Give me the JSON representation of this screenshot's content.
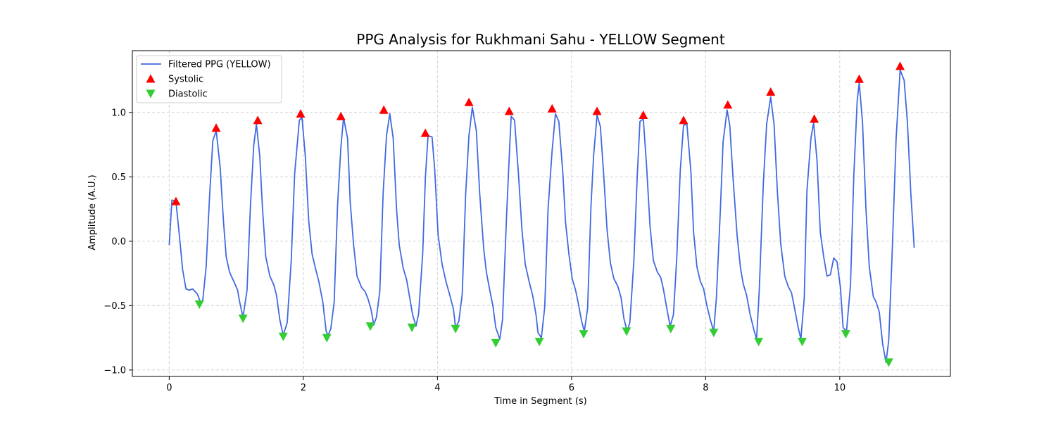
{
  "chart_data": {
    "type": "line",
    "title": "PPG Analysis for Rukhmani Sahu - YELLOW Segment",
    "xlabel": "Time in Segment (s)",
    "ylabel": "Amplitude (A.U.)",
    "xlim": [
      -0.55,
      11.65
    ],
    "ylim": [
      -1.05,
      1.48
    ],
    "x_ticks": [
      0,
      2,
      4,
      6,
      8,
      10
    ],
    "x_tick_labels": [
      "0",
      "2",
      "4",
      "6",
      "8",
      "10"
    ],
    "y_ticks": [
      -1.0,
      -0.5,
      0.0,
      0.5,
      1.0
    ],
    "y_tick_labels": [
      "−1.0",
      "−0.5",
      "0.0",
      "0.5",
      "1.0"
    ],
    "grid": true,
    "legend_position": "upper-left",
    "series": [
      {
        "name": "Filtered PPG (YELLOW)",
        "kind": "line",
        "color": "#4169e1",
        "x": [
          0.0,
          0.04,
          0.1,
          0.16,
          0.2,
          0.25,
          0.3,
          0.35,
          0.42,
          0.47,
          0.5,
          0.55,
          0.6,
          0.65,
          0.7,
          0.76,
          0.81,
          0.85,
          0.9,
          0.97,
          1.02,
          1.05,
          1.1,
          1.16,
          1.21,
          1.26,
          1.3,
          1.35,
          1.39,
          1.44,
          1.5,
          1.56,
          1.6,
          1.65,
          1.7,
          1.76,
          1.82,
          1.87,
          1.94,
          1.98,
          2.03,
          2.08,
          2.13,
          2.19,
          2.23,
          2.29,
          2.34,
          2.37,
          2.41,
          2.46,
          2.51,
          2.56,
          2.6,
          2.66,
          2.7,
          2.75,
          2.8,
          2.87,
          2.92,
          2.96,
          3.01,
          3.05,
          3.09,
          3.14,
          3.19,
          3.24,
          3.29,
          3.34,
          3.39,
          3.43,
          3.49,
          3.54,
          3.58,
          3.63,
          3.68,
          3.72,
          3.78,
          3.82,
          3.86,
          3.92,
          3.96,
          4.01,
          4.07,
          4.13,
          4.18,
          4.24,
          4.27,
          4.32,
          4.37,
          4.42,
          4.47,
          4.52,
          4.58,
          4.63,
          4.69,
          4.73,
          4.78,
          4.83,
          4.87,
          4.93,
          4.97,
          5.03,
          5.07,
          5.1,
          5.15,
          5.21,
          5.26,
          5.31,
          5.37,
          5.42,
          5.47,
          5.5,
          5.55,
          5.6,
          5.65,
          5.71,
          5.76,
          5.81,
          5.87,
          5.91,
          5.96,
          6.01,
          6.06,
          6.1,
          6.15,
          6.19,
          6.24,
          6.29,
          6.33,
          6.38,
          6.43,
          6.48,
          6.53,
          6.58,
          6.63,
          6.69,
          6.74,
          6.78,
          6.83,
          6.87,
          6.93,
          6.98,
          7.02,
          7.07,
          7.12,
          7.17,
          7.22,
          7.28,
          7.33,
          7.37,
          7.42,
          7.47,
          7.52,
          7.57,
          7.62,
          7.67,
          7.72,
          7.78,
          7.82,
          7.87,
          7.92,
          7.97,
          8.01,
          8.07,
          8.12,
          8.16,
          8.22,
          8.26,
          8.32,
          8.36,
          8.41,
          8.47,
          8.52,
          8.56,
          8.61,
          8.66,
          8.72,
          8.76,
          8.8,
          8.86,
          8.91,
          8.97,
          9.02,
          9.07,
          9.12,
          9.18,
          9.23,
          9.28,
          9.33,
          9.38,
          9.42,
          9.47,
          9.51,
          9.57,
          9.61,
          9.66,
          9.71,
          9.76,
          9.81,
          9.86,
          9.91,
          9.96,
          10.01,
          10.05,
          10.1,
          10.16,
          10.21,
          10.26,
          10.29,
          10.34,
          10.39,
          10.44,
          10.5,
          10.54,
          10.59,
          10.64,
          10.69,
          10.73,
          10.78,
          10.84,
          10.9,
          10.96,
          11.01,
          11.06,
          11.11
        ],
        "y": [
          -0.03,
          0.32,
          0.31,
          0.0,
          -0.22,
          -0.37,
          -0.38,
          -0.37,
          -0.41,
          -0.48,
          -0.46,
          -0.2,
          0.33,
          0.78,
          0.86,
          0.57,
          0.15,
          -0.12,
          -0.24,
          -0.32,
          -0.38,
          -0.47,
          -0.59,
          -0.38,
          0.26,
          0.74,
          0.91,
          0.66,
          0.26,
          -0.12,
          -0.27,
          -0.34,
          -0.42,
          -0.61,
          -0.73,
          -0.63,
          -0.15,
          0.52,
          0.94,
          0.96,
          0.66,
          0.16,
          -0.1,
          -0.23,
          -0.31,
          -0.47,
          -0.7,
          -0.73,
          -0.68,
          -0.47,
          0.28,
          0.73,
          0.96,
          0.8,
          0.3,
          -0.03,
          -0.27,
          -0.36,
          -0.39,
          -0.44,
          -0.53,
          -0.65,
          -0.59,
          -0.39,
          0.37,
          0.82,
          0.99,
          0.8,
          0.25,
          -0.03,
          -0.21,
          -0.3,
          -0.42,
          -0.57,
          -0.66,
          -0.56,
          -0.1,
          0.49,
          0.82,
          0.81,
          0.55,
          0.05,
          -0.18,
          -0.32,
          -0.41,
          -0.53,
          -0.67,
          -0.62,
          -0.41,
          0.36,
          0.82,
          1.04,
          0.86,
          0.37,
          -0.06,
          -0.24,
          -0.38,
          -0.51,
          -0.67,
          -0.76,
          -0.61,
          0.19,
          0.65,
          0.97,
          0.94,
          0.51,
          0.09,
          -0.18,
          -0.32,
          -0.42,
          -0.57,
          -0.71,
          -0.75,
          -0.51,
          0.25,
          0.7,
          0.99,
          0.93,
          0.53,
          0.15,
          -0.1,
          -0.29,
          -0.38,
          -0.48,
          -0.62,
          -0.7,
          -0.52,
          0.28,
          0.67,
          0.98,
          0.89,
          0.51,
          0.09,
          -0.17,
          -0.29,
          -0.35,
          -0.44,
          -0.6,
          -0.7,
          -0.63,
          -0.15,
          0.51,
          0.93,
          0.95,
          0.58,
          0.12,
          -0.15,
          -0.24,
          -0.28,
          -0.37,
          -0.52,
          -0.66,
          -0.57,
          -0.12,
          0.54,
          0.9,
          0.91,
          0.54,
          0.07,
          -0.2,
          -0.31,
          -0.37,
          -0.48,
          -0.61,
          -0.7,
          -0.44,
          0.25,
          0.77,
          1.02,
          0.9,
          0.48,
          0.04,
          -0.21,
          -0.33,
          -0.42,
          -0.56,
          -0.69,
          -0.76,
          -0.38,
          0.45,
          0.91,
          1.12,
          0.91,
          0.38,
          -0.02,
          -0.27,
          -0.35,
          -0.4,
          -0.53,
          -0.67,
          -0.76,
          -0.44,
          0.39,
          0.8,
          0.92,
          0.63,
          0.07,
          -0.12,
          -0.27,
          -0.26,
          -0.13,
          -0.16,
          -0.36,
          -0.67,
          -0.7,
          -0.34,
          0.51,
          1.09,
          1.23,
          0.92,
          0.26,
          -0.2,
          -0.43,
          -0.47,
          -0.55,
          -0.8,
          -0.94,
          -0.77,
          -0.12,
          0.8,
          1.33,
          1.25,
          0.92,
          0.37,
          -0.05
        ]
      },
      {
        "name": "Systolic",
        "kind": "markers",
        "marker": "triangle-up",
        "color": "#ff0000",
        "x": [
          0.1,
          0.7,
          1.32,
          1.96,
          2.56,
          3.2,
          3.82,
          4.47,
          5.07,
          5.71,
          6.38,
          7.07,
          7.67,
          8.33,
          8.97,
          9.62,
          10.29,
          10.9
        ],
        "y": [
          0.31,
          0.88,
          0.94,
          0.99,
          0.97,
          1.02,
          0.84,
          1.08,
          1.01,
          1.03,
          1.01,
          0.98,
          0.94,
          1.06,
          1.16,
          0.95,
          1.26,
          1.36
        ]
      },
      {
        "name": "Diastolic",
        "kind": "markers",
        "marker": "triangle-down",
        "color": "#32cd32",
        "x": [
          0.45,
          1.1,
          1.7,
          2.35,
          3.0,
          3.62,
          4.27,
          4.87,
          5.52,
          6.18,
          6.82,
          7.48,
          8.12,
          8.79,
          9.44,
          10.09,
          10.73
        ],
        "y": [
          -0.49,
          -0.6,
          -0.74,
          -0.75,
          -0.66,
          -0.67,
          -0.68,
          -0.79,
          -0.78,
          -0.72,
          -0.7,
          -0.68,
          -0.71,
          -0.78,
          -0.78,
          -0.72,
          -0.94
        ]
      }
    ]
  }
}
